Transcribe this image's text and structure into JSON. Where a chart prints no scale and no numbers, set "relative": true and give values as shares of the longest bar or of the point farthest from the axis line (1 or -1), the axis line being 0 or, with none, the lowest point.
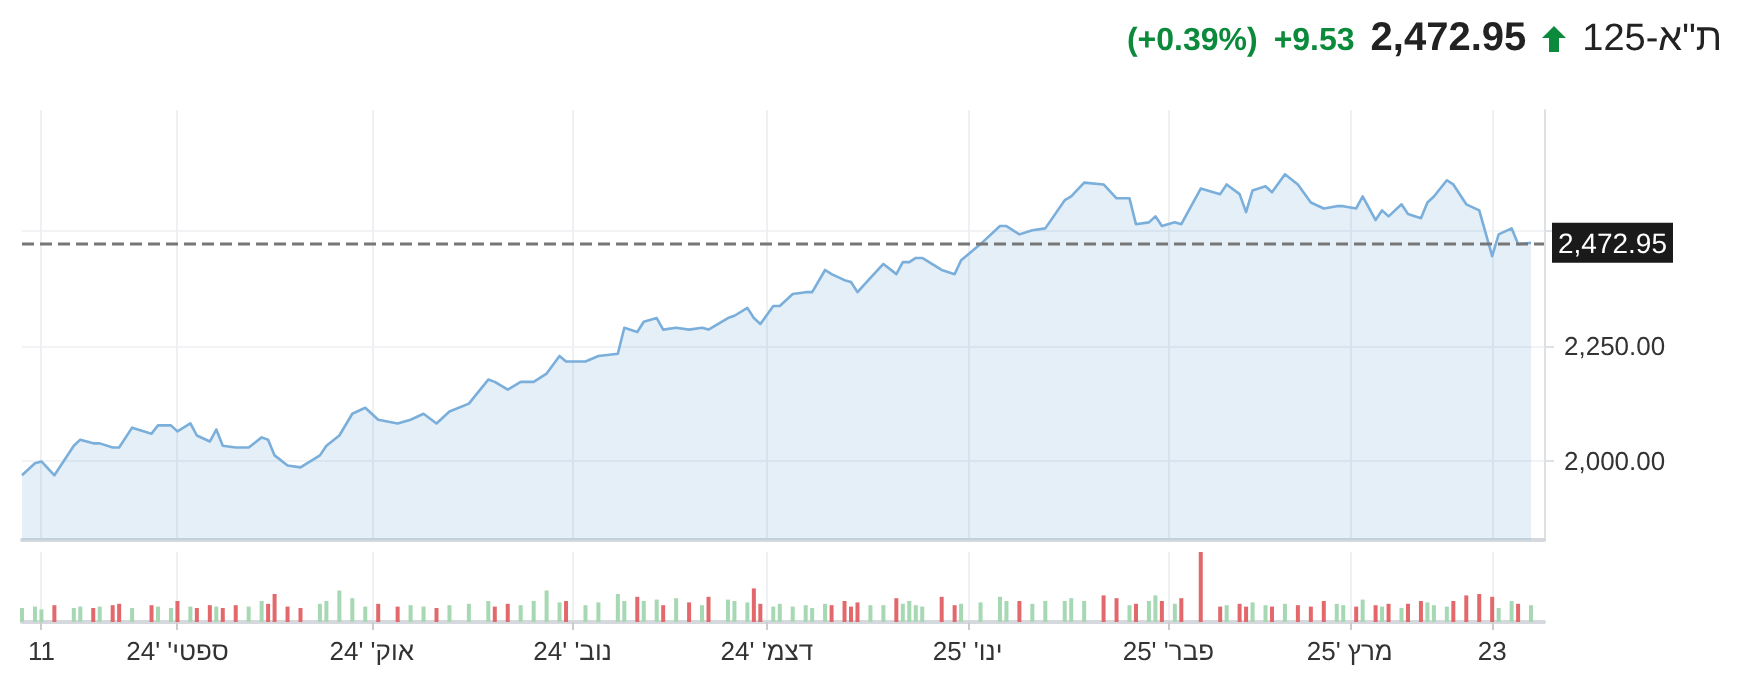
{
  "chart_data": [
    {
      "type": "area",
      "title": "ת\"א-125",
      "annotations": [
        "2,472.95",
        "+9.53",
        "(+0.39%)"
      ],
      "x": [
        "2024-08-08",
        "2024-08-10",
        "2024-08-11",
        "2024-08-13",
        "2024-08-16",
        "2024-08-17",
        "2024-08-19",
        "2024-08-20",
        "2024-08-22",
        "2024-08-23",
        "2024-08-25",
        "2024-08-28",
        "2024-08-29",
        "2024-08-31",
        "2024-09-01",
        "2024-09-03",
        "2024-09-04",
        "2024-09-06",
        "2024-09-07",
        "2024-09-08",
        "2024-09-10",
        "2024-09-12",
        "2024-09-14",
        "2024-09-15",
        "2024-09-16",
        "2024-09-18",
        "2024-09-20",
        "2024-09-23",
        "2024-09-24",
        "2024-09-26",
        "2024-09-28",
        "2024-09-30",
        "2024-10-02",
        "2024-10-05",
        "2024-10-07",
        "2024-10-09",
        "2024-10-11",
        "2024-10-13",
        "2024-10-16",
        "2024-10-19",
        "2024-10-20",
        "2024-10-22",
        "2024-10-24",
        "2024-10-26",
        "2024-10-28",
        "2024-10-30",
        "2024-10-31",
        "2024-11-03",
        "2024-11-05",
        "2024-11-08",
        "2024-11-09",
        "2024-11-11",
        "2024-11-12",
        "2024-11-14",
        "2024-11-15",
        "2024-11-17",
        "2024-11-19",
        "2024-11-21",
        "2024-11-22",
        "2024-11-25",
        "2024-11-26",
        "2024-11-28",
        "2024-11-29",
        "2024-11-30",
        "2024-12-02",
        "2024-12-03",
        "2024-12-05",
        "2024-12-07",
        "2024-12-08",
        "2024-12-10",
        "2024-12-11",
        "2024-12-13",
        "2024-12-14",
        "2024-12-15",
        "2024-12-17",
        "2024-12-19",
        "2024-12-21",
        "2024-12-22",
        "2024-12-23",
        "2024-12-24",
        "2024-12-25",
        "2024-12-28",
        "2024-12-30",
        "2024-12-31",
        "2025-01-03",
        "2025-01-06",
        "2025-01-07",
        "2025-01-09",
        "2025-01-11",
        "2025-01-13",
        "2025-01-16",
        "2025-01-17",
        "2025-01-19",
        "2025-01-22",
        "2025-01-24",
        "2025-01-26",
        "2025-01-27",
        "2025-01-29",
        "2025-01-30",
        "2025-01-31",
        "2025-02-02",
        "2025-02-03",
        "2025-02-06",
        "2025-02-09",
        "2025-02-10",
        "2025-02-12",
        "2025-02-13",
        "2025-02-14",
        "2025-02-16",
        "2025-02-17",
        "2025-02-19",
        "2025-02-21",
        "2025-02-23",
        "2025-02-25",
        "2025-02-27",
        "2025-02-28",
        "2025-03-02",
        "2025-03-03",
        "2025-03-05",
        "2025-03-06",
        "2025-03-07",
        "2025-03-09",
        "2025-03-10",
        "2025-03-12",
        "2025-03-13",
        "2025-03-14",
        "2025-03-16",
        "2025-03-17",
        "2025-03-19",
        "2025-03-21",
        "2025-03-23",
        "2025-03-24",
        "2025-03-26",
        "2025-03-27",
        "2025-03-29"
      ],
      "series": [
        {
          "color": "#7aaedb",
          "values": [
            1970,
            1996,
            2000,
            1970,
            2034,
            2047,
            2039,
            2039,
            2030,
            2030,
            2073,
            2060,
            2078,
            2078,
            2065,
            2082,
            2056,
            2043,
            2069,
            2034,
            2030,
            2030,
            2052,
            2047,
            2013,
            1991,
            1987,
            2013,
            2034,
            2056,
            2103,
            2116,
            2090,
            2082,
            2090,
            2103,
            2082,
            2108,
            2125,
            2177,
            2172,
            2155,
            2172,
            2172,
            2190,
            2228,
            2216,
            2216,
            2228,
            2233,
            2289,
            2280,
            2302,
            2310,
            2285,
            2289,
            2285,
            2289,
            2285,
            2310,
            2315,
            2332,
            2310,
            2297,
            2336,
            2336,
            2362,
            2366,
            2366,
            2414,
            2405,
            2392,
            2388,
            2366,
            2397,
            2427,
            2405,
            2431,
            2431,
            2440,
            2440,
            2414,
            2405,
            2435,
            2470,
            2509,
            2509,
            2491,
            2500,
            2504,
            2565,
            2573,
            2603,
            2599,
            2569,
            2569,
            2513,
            2517,
            2530,
            2509,
            2517,
            2513,
            2590,
            2578,
            2599,
            2578,
            2539,
            2586,
            2595,
            2582,
            2621,
            2599,
            2560,
            2547,
            2552,
            2552,
            2547,
            2573,
            2522,
            2543,
            2530,
            2556,
            2535,
            2526,
            2560,
            2573,
            2608,
            2599,
            2556,
            2543,
            2444,
            2491,
            2504,
            2470,
            2472.95
          ]
        }
      ],
      "xlim": [
        "2024-08-08",
        "2025-03-31"
      ],
      "xticks": [
        {
          "value": "2024-08-11",
          "label": null
        },
        {
          "value": "2024-09-01",
          "label": null
        },
        {
          "value": "2024-10-01",
          "label": null
        },
        {
          "value": "2024-11-01",
          "label": null
        },
        {
          "value": "2024-12-01",
          "label": null
        },
        {
          "value": "2025-01-01",
          "label": null
        },
        {
          "value": "2025-02-01",
          "label": null
        },
        {
          "value": "2025-03-01",
          "label": null
        },
        {
          "value": "2025-03-23",
          "label": null
        }
      ],
      "ylim": [
        1830,
        2760
      ],
      "yticks": [
        {
          "value": 2000,
          "label": "2,000.00"
        },
        {
          "value": 2250,
          "label": "2,250.00"
        },
        {
          "value": 2500,
          "label": null
        }
      ],
      "tick_labels": "y",
      "grid": true,
      "marker": "none",
      "ref_lines": [
        {
          "axis": "y",
          "value": 2472.95,
          "label": "2,472.95",
          "color": "#777777",
          "line_style": "dashed"
        }
      ]
    },
    {
      "type": "bar",
      "relative": true,
      "x": [
        "2024-08-08",
        "2024-08-10",
        "2024-08-11",
        "2024-08-13",
        "2024-08-16",
        "2024-08-17",
        "2024-08-19",
        "2024-08-20",
        "2024-08-22",
        "2024-08-23",
        "2024-08-25",
        "2024-08-28",
        "2024-08-29",
        "2024-08-31",
        "2024-09-01",
        "2024-09-03",
        "2024-09-04",
        "2024-09-06",
        "2024-09-07",
        "2024-09-08",
        "2024-09-10",
        "2024-09-12",
        "2024-09-14",
        "2024-09-15",
        "2024-09-16",
        "2024-09-18",
        "2024-09-20",
        "2024-09-23",
        "2024-09-24",
        "2024-09-26",
        "2024-09-28",
        "2024-09-30",
        "2024-10-02",
        "2024-10-05",
        "2024-10-07",
        "2024-10-09",
        "2024-10-11",
        "2024-10-13",
        "2024-10-16",
        "2024-10-19",
        "2024-10-20",
        "2024-10-22",
        "2024-10-24",
        "2024-10-26",
        "2024-10-28",
        "2024-10-30",
        "2024-10-31",
        "2024-11-03",
        "2024-11-05",
        "2024-11-08",
        "2024-11-09",
        "2024-11-11",
        "2024-11-12",
        "2024-11-14",
        "2024-11-15",
        "2024-11-17",
        "2024-11-19",
        "2024-11-21",
        "2024-11-22",
        "2024-11-25",
        "2024-11-26",
        "2024-11-28",
        "2024-11-29",
        "2024-11-30",
        "2024-12-02",
        "2024-12-03",
        "2024-12-05",
        "2024-12-07",
        "2024-12-08",
        "2024-12-10",
        "2024-12-11",
        "2024-12-13",
        "2024-12-14",
        "2024-12-15",
        "2024-12-17",
        "2024-12-19",
        "2024-12-21",
        "2024-12-22",
        "2024-12-23",
        "2024-12-24",
        "2024-12-25",
        "2024-12-28",
        "2024-12-30",
        "2024-12-31",
        "2025-01-03",
        "2025-01-06",
        "2025-01-07",
        "2025-01-09",
        "2025-01-11",
        "2025-01-13",
        "2025-01-16",
        "2025-01-17",
        "2025-01-19",
        "2025-01-22",
        "2025-01-24",
        "2025-01-26",
        "2025-01-27",
        "2025-01-29",
        "2025-01-30",
        "2025-01-31",
        "2025-02-02",
        "2025-02-03",
        "2025-02-06",
        "2025-02-09",
        "2025-02-10",
        "2025-02-12",
        "2025-02-13",
        "2025-02-14",
        "2025-02-16",
        "2025-02-17",
        "2025-02-19",
        "2025-02-21",
        "2025-02-23",
        "2025-02-25",
        "2025-02-27",
        "2025-02-28",
        "2025-03-02",
        "2025-03-03",
        "2025-03-05",
        "2025-03-06",
        "2025-03-07",
        "2025-03-09",
        "2025-03-10",
        "2025-03-12",
        "2025-03-13",
        "2025-03-14",
        "2025-03-16",
        "2025-03-17",
        "2025-03-19",
        "2025-03-21",
        "2025-03-23",
        "2025-03-24",
        "2025-03-26",
        "2025-03-27",
        "2025-03-29"
      ],
      "values": [
        0.2,
        0.22,
        0.18,
        0.24,
        0.2,
        0.22,
        0.2,
        0.22,
        0.24,
        0.26,
        0.2,
        0.24,
        0.22,
        0.2,
        0.3,
        0.22,
        0.2,
        0.24,
        0.22,
        0.2,
        0.24,
        0.22,
        0.3,
        0.26,
        0.4,
        0.22,
        0.2,
        0.26,
        0.3,
        0.45,
        0.34,
        0.22,
        0.26,
        0.22,
        0.24,
        0.22,
        0.2,
        0.24,
        0.26,
        0.3,
        0.22,
        0.26,
        0.24,
        0.3,
        0.45,
        0.28,
        0.3,
        0.24,
        0.28,
        0.4,
        0.3,
        0.36,
        0.3,
        0.32,
        0.24,
        0.34,
        0.28,
        0.24,
        0.36,
        0.32,
        0.3,
        0.28,
        0.48,
        0.26,
        0.22,
        0.26,
        0.22,
        0.24,
        0.2,
        0.26,
        0.24,
        0.3,
        0.22,
        0.28,
        0.24,
        0.24,
        0.34,
        0.26,
        0.3,
        0.24,
        0.22,
        0.36,
        0.24,
        0.26,
        0.28,
        0.36,
        0.3,
        0.3,
        0.26,
        0.3,
        0.3,
        0.34,
        0.3,
        0.38,
        0.34,
        0.24,
        0.26,
        0.3,
        0.38,
        0.3,
        0.26,
        0.34,
        1.0,
        0.22,
        0.24,
        0.26,
        0.22,
        0.28,
        0.24,
        0.22,
        0.26,
        0.24,
        0.22,
        0.3,
        0.26,
        0.24,
        0.22,
        0.32,
        0.24,
        0.22,
        0.26,
        0.2,
        0.26,
        0.3,
        0.28,
        0.24,
        0.22,
        0.3,
        0.38,
        0.4,
        0.36,
        0.2,
        0.3,
        0.26,
        0.24
      ],
      "colors": [
        "#a5d8b3",
        "#a5d8b3",
        "#a5d8b3",
        "#e3686b",
        "#a5d8b3",
        "#a5d8b3",
        "#e3686b",
        "#a5d8b3",
        "#e3686b",
        "#e3686b",
        "#a5d8b3",
        "#e3686b",
        "#a5d8b3",
        "#a5d8b3",
        "#e3686b",
        "#a5d8b3",
        "#e3686b",
        "#e3686b",
        "#a5d8b3",
        "#e3686b",
        "#e3686b",
        "#a5d8b3",
        "#a5d8b3",
        "#e3686b",
        "#e3686b",
        "#e3686b",
        "#e3686b",
        "#a5d8b3",
        "#a5d8b3",
        "#a5d8b3",
        "#a5d8b3",
        "#a5d8b3",
        "#e3686b",
        "#e3686b",
        "#a5d8b3",
        "#a5d8b3",
        "#e3686b",
        "#a5d8b3",
        "#a5d8b3",
        "#a5d8b3",
        "#e3686b",
        "#e3686b",
        "#a5d8b3",
        "#a5d8b3",
        "#a5d8b3",
        "#a5d8b3",
        "#e3686b",
        "#a5d8b3",
        "#a5d8b3",
        "#a5d8b3",
        "#a5d8b3",
        "#e3686b",
        "#a5d8b3",
        "#a5d8b3",
        "#e3686b",
        "#a5d8b3",
        "#e3686b",
        "#a5d8b3",
        "#e3686b",
        "#a5d8b3",
        "#a5d8b3",
        "#a5d8b3",
        "#e3686b",
        "#e3686b",
        "#a5d8b3",
        "#a5d8b3",
        "#a5d8b3",
        "#a5d8b3",
        "#a5d8b3",
        "#a5d8b3",
        "#e3686b",
        "#e3686b",
        "#e3686b",
        "#e3686b",
        "#a5d8b3",
        "#a5d8b3",
        "#e3686b",
        "#a5d8b3",
        "#a5d8b3",
        "#a5d8b3",
        "#a5d8b3",
        "#e3686b",
        "#e3686b",
        "#a5d8b3",
        "#a5d8b3",
        "#a5d8b3",
        "#a5d8b3",
        "#e3686b",
        "#a5d8b3",
        "#a5d8b3",
        "#a5d8b3",
        "#a5d8b3",
        "#a5d8b3",
        "#e3686b",
        "#e3686b",
        "#a5d8b3",
        "#e3686b",
        "#a5d8b3",
        "#a5d8b3",
        "#e3686b",
        "#a5d8b3",
        "#e3686b",
        "#e3686b",
        "#e3686b",
        "#a5d8b3",
        "#e3686b",
        "#e3686b",
        "#a5d8b3",
        "#a5d8b3",
        "#e3686b",
        "#a5d8b3",
        "#e3686b",
        "#e3686b",
        "#e3686b",
        "#a5d8b3",
        "#a5d8b3",
        "#e3686b",
        "#a5d8b3",
        "#e3686b",
        "#a5d8b3",
        "#e3686b",
        "#a5d8b3",
        "#e3686b",
        "#e3686b",
        "#a5d8b3",
        "#a5d8b3",
        "#a5d8b3",
        "#e3686b",
        "#e3686b",
        "#e3686b",
        "#e3686b",
        "#a5d8b3",
        "#a5d8b3",
        "#e3686b",
        "#a5d8b3"
      ],
      "xlim": [
        "2024-08-08",
        "2025-03-31"
      ],
      "xticks": [
        {
          "value": "2024-08-11",
          "label": "11"
        },
        {
          "value": "2024-09-01",
          "label": "ספטי' '24"
        },
        {
          "value": "2024-10-01",
          "label": "אוק' '24"
        },
        {
          "value": "2024-11-01",
          "label": "נוב' '24"
        },
        {
          "value": "2024-12-01",
          "label": "דצמ' '24"
        },
        {
          "value": "2025-01-01",
          "label": "ינו' '25"
        },
        {
          "value": "2025-02-01",
          "label": "פבר' '25"
        },
        {
          "value": "2025-03-01",
          "label": "מרץ '25"
        },
        {
          "value": "2025-03-23",
          "label": "23"
        }
      ],
      "tick_labels": "x",
      "grid": "x"
    }
  ]
}
